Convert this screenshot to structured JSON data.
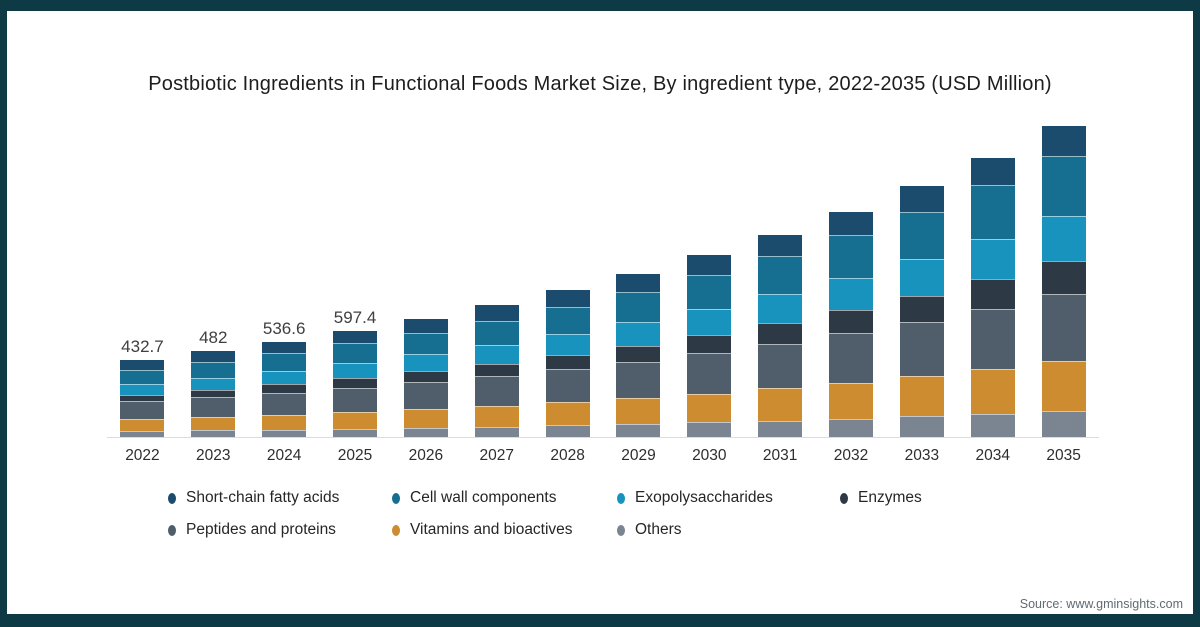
{
  "title": "Postbiotic Ingredients in Functional Foods Market Size, By ingredient type, 2022-2035 (USD Million)",
  "source": "Source: www.gminsights.com",
  "frame_color": "#0d3a44",
  "axis_line_color": "#d8dcdf",
  "chart_data": {
    "type": "bar",
    "stacked": true,
    "title": "Postbiotic Ingredients in Functional Foods Market Size, By ingredient type, 2022-2035 (USD Million)",
    "unit": "USD Million",
    "x_axis_years": true,
    "y_axis_visible": false,
    "grid": false,
    "legend_position": "bottom",
    "legend_rows": [
      4,
      3
    ],
    "stack_order": "first series renders at top of bar",
    "categories": [
      "2022",
      "2023",
      "2024",
      "2025",
      "2026",
      "2027",
      "2028",
      "2029",
      "2030",
      "2031",
      "2032",
      "2033",
      "2034",
      "2035"
    ],
    "value_labels": [
      "432.7",
      "482",
      "536.6",
      "597.4",
      "",
      "",
      "",
      "",
      "",
      "",
      "",
      "",
      "",
      ""
    ],
    "totals": [
      432.7,
      482,
      536.6,
      597.4,
      665.0,
      740.3,
      824.1,
      917.4,
      1021.2,
      1136.8,
      1265.5,
      1408.8,
      1568.3,
      1745.8
    ],
    "series": [
      {
        "name": "Short-chain fatty acids",
        "color": "#1b4b6d",
        "values": [
          55.4,
          60.5,
          66.0,
          72.0,
          78.6,
          85.7,
          93.3,
          101.6,
          110.6,
          120.3,
          130.9,
          142.2,
          154.5,
          167.6
        ]
      },
      {
        "name": "Cell wall components",
        "color": "#166f90",
        "values": [
          77.9,
          87.2,
          97.7,
          109.3,
          122.4,
          137.0,
          153.3,
          171.6,
          192.0,
          214.9,
          240.4,
          269.1,
          301.1,
          337.0
        ]
      },
      {
        "name": "Exopolysaccharides",
        "color": "#1793be",
        "values": [
          61.0,
          68.1,
          76.0,
          84.8,
          94.6,
          105.5,
          117.7,
          131.4,
          146.5,
          163.5,
          182.4,
          203.4,
          226.9,
          253.1
        ]
      },
      {
        "name": "Enzymes",
        "color": "#2d3a45",
        "values": [
          38.9,
          44.0,
          49.6,
          56.0,
          63.1,
          71.2,
          80.3,
          90.5,
          101.9,
          114.9,
          129.5,
          145.8,
          164.4,
          185.1
        ]
      },
      {
        "name": "Peptides and proteins",
        "color": "#4f5e6a",
        "values": [
          100.0,
          110.8,
          122.6,
          135.8,
          150.3,
          166.4,
          184.3,
          204.0,
          225.9,
          250.0,
          276.8,
          306.4,
          339.1,
          375.3
        ]
      },
      {
        "name": "Vitamins and bioactives",
        "color": "#cc8c2f",
        "values": [
          66.6,
          74.5,
          83.2,
          93.0,
          103.9,
          116.0,
          129.5,
          144.8,
          161.7,
          180.5,
          201.7,
          225.3,
          251.7,
          281.1
        ]
      },
      {
        "name": "Others",
        "color": "#7b8591",
        "values": [
          32.9,
          36.9,
          41.5,
          46.5,
          52.1,
          58.5,
          65.7,
          73.5,
          82.6,
          92.7,
          103.8,
          116.6,
          130.6,
          146.6
        ]
      }
    ]
  }
}
